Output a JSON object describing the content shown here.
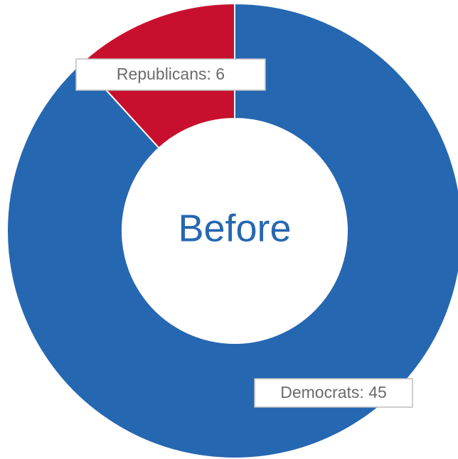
{
  "chart_data": {
    "type": "pie",
    "variant": "donut",
    "center_label": "Before",
    "slices": [
      {
        "label": "Democrats",
        "value": 45,
        "color": "#2667b1",
        "data_label": "Democrats: 45"
      },
      {
        "label": "Republicans",
        "value": 6,
        "color": "#c8102e",
        "data_label": "Republicans: 6"
      }
    ],
    "slice_border_color": "#ffffff",
    "center_label_color": "#2667b1",
    "data_label_text_color": "#6b6b6b",
    "data_label_box_border_color": "#bdbdbd",
    "data_label_box_fill": "#ffffff"
  }
}
